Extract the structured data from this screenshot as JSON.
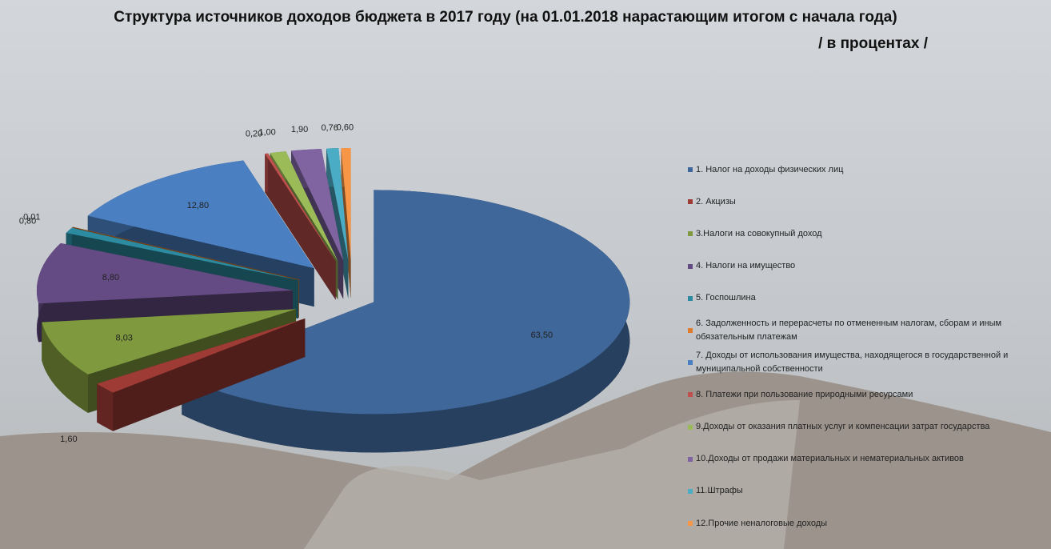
{
  "chart_data": {
    "type": "pie",
    "title": "Структура источников доходов бюджета в 2017 году (на 01.01.2018 нарастающим итогом с начала года)",
    "subtitle": "/ в процентах /",
    "categories": [
      "1. Налог на  доходы физических лиц",
      "2. Акцизы",
      "3.Налоги на совокупный доход",
      "4. Налоги на имущество",
      "5. Госпошлина",
      "6. Задолженность и перерасчеты по отмененным налогам, сборам и иным обязательным платежам",
      "7. Доходы от использования имущества, находящегося в государственной и муниципальной собственности",
      "8. Платежи при пользование природными ресурсами",
      "9.Доходы от оказания платных услуг и компенсации затрат государства",
      "10.Доходы от продажи материальных и нематериальных активов",
      "11.Штрафы",
      "12.Прочие неналоговые доходы"
    ],
    "values": [
      63.5,
      1.6,
      8.03,
      8.8,
      0.8,
      0.01,
      12.8,
      0.2,
      1.0,
      1.9,
      0.76,
      0.6
    ],
    "value_labels": [
      "63,50",
      "1,60",
      "8,03",
      "8,80",
      "0,80",
      "0,01",
      "12,80",
      "0,20",
      "1,00",
      "1,90",
      "0,76",
      "0,60"
    ],
    "colors": [
      "#3f679a",
      "#9e3b35",
      "#7f9a3e",
      "#654b84",
      "#2c8ba0",
      "#e07b2c",
      "#4a7fc1",
      "#c0504d",
      "#9bbb59",
      "#8064a2",
      "#4bacc6",
      "#f79646"
    ]
  }
}
